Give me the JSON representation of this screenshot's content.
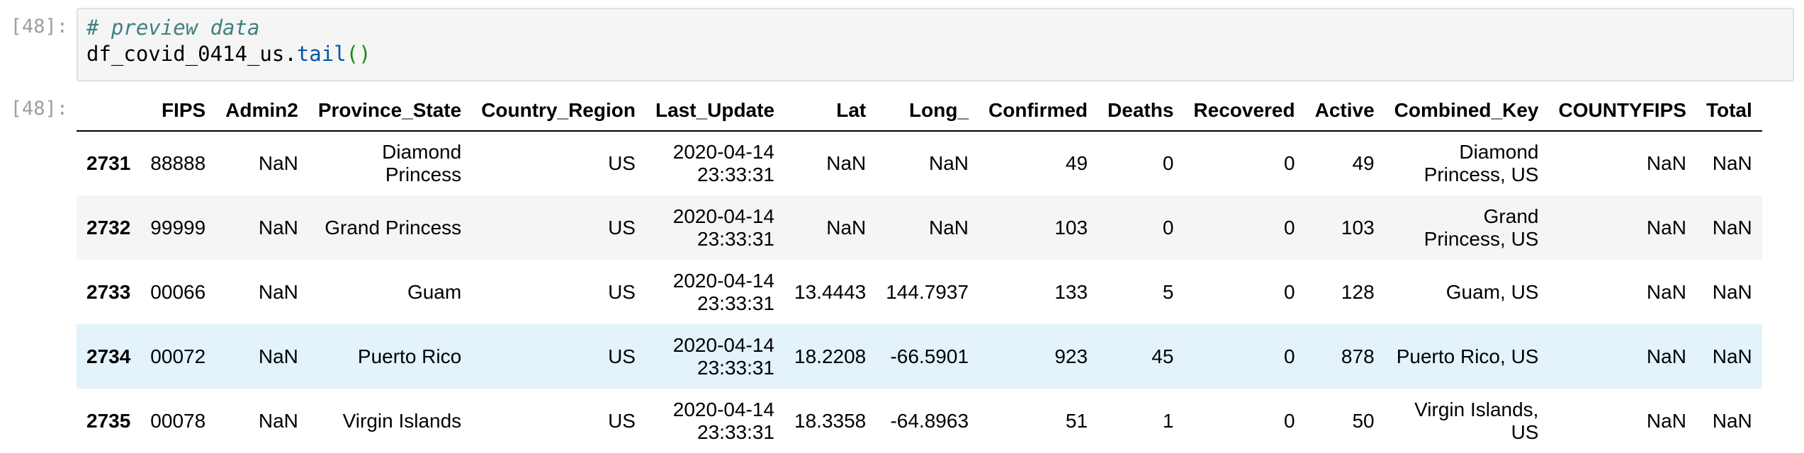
{
  "input_cell": {
    "prompt": "[48]:",
    "comment": "# preview data",
    "code": {
      "name": "df_covid_0414_us",
      "dot": ".",
      "method": "tail",
      "parens": "()"
    }
  },
  "output_cell": {
    "prompt": "[48]:",
    "columns": [
      "FIPS",
      "Admin2",
      "Province_State",
      "Country_Region",
      "Last_Update",
      "Lat",
      "Long_",
      "Confirmed",
      "Deaths",
      "Recovered",
      "Active",
      "Combined_Key",
      "COUNTYFIPS",
      "Total"
    ],
    "rows": [
      {
        "index": "2731",
        "cells": [
          "88888",
          "NaN",
          [
            "Diamond",
            "Princess"
          ],
          "US",
          [
            "2020-04-14",
            "23:33:31"
          ],
          "NaN",
          "NaN",
          "49",
          "0",
          "0",
          "49",
          [
            "Diamond",
            "Princess, US"
          ],
          "NaN",
          "NaN"
        ]
      },
      {
        "index": "2732",
        "cells": [
          "99999",
          "NaN",
          "Grand Princess",
          "US",
          [
            "2020-04-14",
            "23:33:31"
          ],
          "NaN",
          "NaN",
          "103",
          "0",
          "0",
          "103",
          [
            "Grand",
            "Princess, US"
          ],
          "NaN",
          "NaN"
        ]
      },
      {
        "index": "2733",
        "cells": [
          "00066",
          "NaN",
          "Guam",
          "US",
          [
            "2020-04-14",
            "23:33:31"
          ],
          "13.4443",
          "144.7937",
          "133",
          "5",
          "0",
          "128",
          "Guam, US",
          "NaN",
          "NaN"
        ]
      },
      {
        "index": "2734",
        "cells": [
          "00072",
          "NaN",
          "Puerto Rico",
          "US",
          [
            "2020-04-14",
            "23:33:31"
          ],
          "18.2208",
          "-66.5901",
          "923",
          "45",
          "0",
          "878",
          "Puerto Rico, US",
          "NaN",
          "NaN"
        ]
      },
      {
        "index": "2735",
        "cells": [
          "00078",
          "NaN",
          "Virgin Islands",
          "US",
          [
            "2020-04-14",
            "23:33:31"
          ],
          "18.3358",
          "-64.8963",
          "51",
          "1",
          "0",
          "50",
          [
            "Virgin Islands,",
            "US"
          ],
          "NaN",
          "NaN"
        ]
      }
    ],
    "row_styles": [
      "plain",
      "odd",
      "plain",
      "hover",
      "plain"
    ]
  }
}
